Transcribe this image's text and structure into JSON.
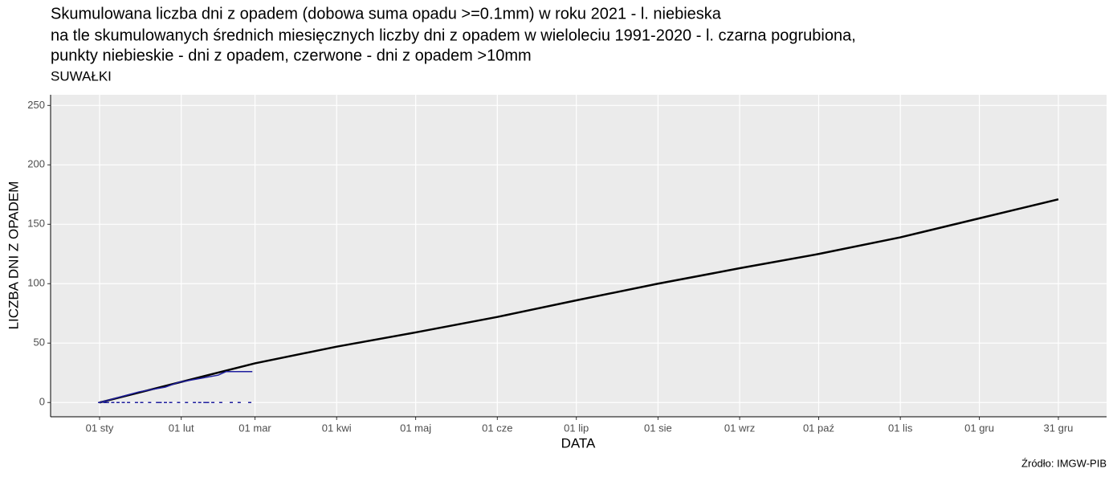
{
  "chart_data": {
    "type": "line",
    "title": [
      "Skumulowana liczba dni z opadem (dobowa suma opadu >=0.1mm) w roku 2021 - l. niebieska",
      "na tle skumulowanych średnich miesięcznych liczby dni z opadem w wieloleciu 1991-2020 - l. czarna pogrubiona,",
      "punkty niebieskie - dni z opadem, czerwone - dni z opadem >10mm"
    ],
    "subtitle": "SUWAŁKI",
    "caption": "Źródło: IMGW-PIB",
    "x_label": "DATA",
    "y_label": "LICZBA DNI Z OPADEM",
    "xlim": [
      -18.6,
      382.3
    ],
    "xticks": [
      {
        "value": 0,
        "label": "01 sty"
      },
      {
        "value": 31,
        "label": "01 lut"
      },
      {
        "value": 59,
        "label": "01 mar"
      },
      {
        "value": 90,
        "label": "01 kwi"
      },
      {
        "value": 120,
        "label": "01 maj"
      },
      {
        "value": 151,
        "label": "01 cze"
      },
      {
        "value": 181,
        "label": "01 lip"
      },
      {
        "value": 212,
        "label": "01 sie"
      },
      {
        "value": 243,
        "label": "01 wrz"
      },
      {
        "value": 273,
        "label": "01 paź"
      },
      {
        "value": 304,
        "label": "01 lis"
      },
      {
        "value": 334,
        "label": "01 gru"
      },
      {
        "value": 364,
        "label": "31 gru"
      }
    ],
    "ylim": [
      -12,
      259
    ],
    "yticks": [
      0,
      50,
      100,
      150,
      200,
      250
    ],
    "grid": true,
    "series": [
      {
        "color": "#000000",
        "width": 2.5,
        "x": [
          0,
          59,
          90,
          120,
          151,
          181,
          212,
          243,
          273,
          304,
          334,
          364
        ],
        "values": [
          0,
          33,
          47,
          59,
          72,
          86,
          100,
          113,
          125,
          139,
          155,
          171
        ]
      },
      {
        "color": "#1f1f9f",
        "width": 1.5,
        "x": [
          0,
          5,
          10,
          15,
          20,
          25,
          30,
          35,
          40,
          45,
          48,
          58
        ],
        "values": [
          0,
          3,
          6,
          9,
          11,
          13,
          17,
          19,
          21,
          23,
          26,
          26
        ]
      },
      {
        "type": "scatter",
        "color": "#1f1f9f",
        "x": [
          0,
          2,
          3,
          5,
          7,
          9,
          11,
          14,
          16,
          19,
          22,
          23,
          25,
          27,
          30,
          33,
          36,
          38,
          40,
          41,
          43,
          46,
          50,
          53,
          57
        ],
        "values": [
          0,
          0,
          0,
          0,
          0,
          0,
          0,
          0,
          0,
          0,
          0,
          0,
          0,
          0,
          0,
          0,
          0,
          0,
          0,
          0,
          0,
          0,
          0,
          0,
          0
        ]
      }
    ]
  }
}
